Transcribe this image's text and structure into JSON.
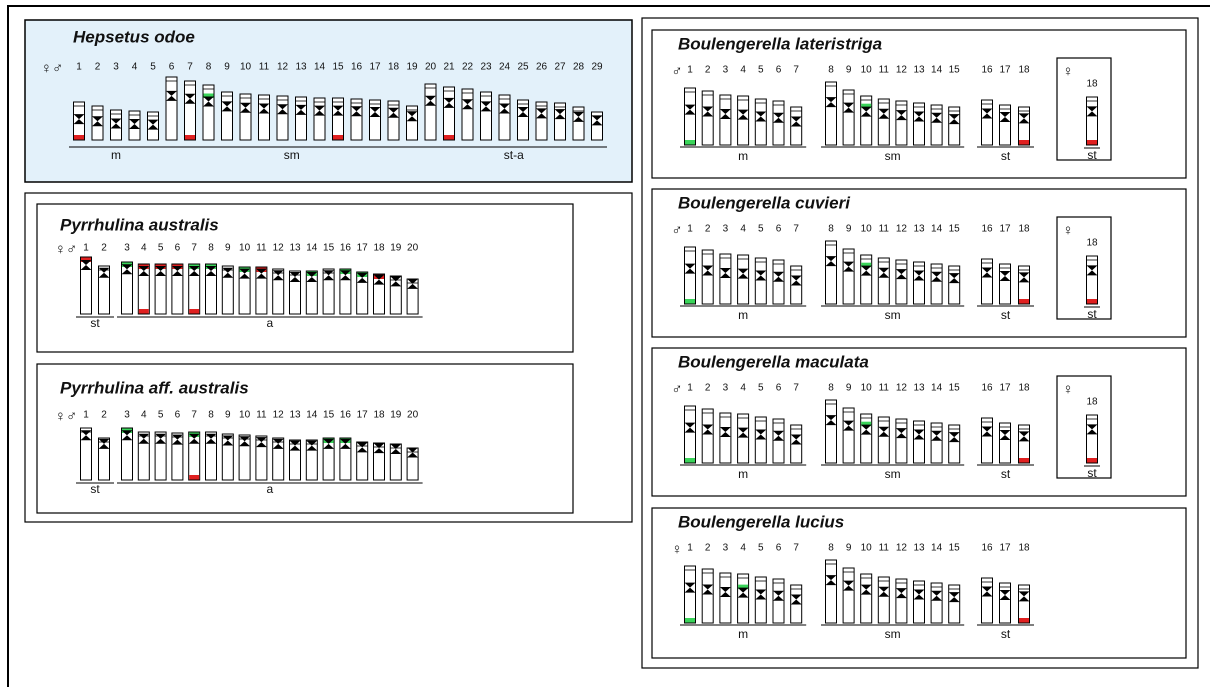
{
  "panels": [
    {
      "title": "Hepsetus odoe",
      "sex": "♀♂",
      "chromosomes": [
        1,
        2,
        3,
        4,
        5,
        6,
        7,
        8,
        9,
        10,
        11,
        12,
        13,
        14,
        15,
        16,
        17,
        18,
        19,
        20,
        21,
        22,
        23,
        24,
        25,
        26,
        27,
        28,
        29
      ],
      "groups": [
        "m",
        "sm",
        "st-a"
      ]
    },
    {
      "title": "Pyrrhulina australis",
      "sex": "♀♂",
      "chromosomes": [
        1,
        2,
        3,
        4,
        5,
        6,
        7,
        8,
        9,
        10,
        11,
        12,
        13,
        14,
        15,
        16,
        17,
        18,
        19,
        20
      ],
      "groups": [
        "st",
        "a"
      ]
    },
    {
      "title": "Pyrrhulina aff. australis",
      "sex": "♀♂",
      "chromosomes": [
        1,
        2,
        3,
        4,
        5,
        6,
        7,
        8,
        9,
        10,
        11,
        12,
        13,
        14,
        15,
        16,
        17,
        18,
        19,
        20
      ],
      "groups": [
        "st",
        "a"
      ]
    },
    {
      "title": "Boulengerella lateristriga",
      "sex": "♂",
      "chromosomes": [
        1,
        2,
        3,
        4,
        5,
        6,
        7,
        8,
        9,
        10,
        11,
        12,
        13,
        14,
        15,
        16,
        17,
        18
      ],
      "groups": [
        "m",
        "sm",
        "st"
      ],
      "inset": {
        "sex": "♀",
        "chromosome": 18,
        "group": "st"
      }
    },
    {
      "title": "Boulengerella cuvieri",
      "sex": "♂",
      "chromosomes": [
        1,
        2,
        3,
        4,
        5,
        6,
        7,
        8,
        9,
        10,
        11,
        12,
        13,
        14,
        15,
        16,
        17,
        18
      ],
      "groups": [
        "m",
        "sm",
        "st"
      ],
      "inset": {
        "sex": "♀",
        "chromosome": 18,
        "group": "st"
      }
    },
    {
      "title": "Boulengerella maculata",
      "sex": "♂",
      "chromosomes": [
        1,
        2,
        3,
        4,
        5,
        6,
        7,
        8,
        9,
        10,
        11,
        12,
        13,
        14,
        15,
        16,
        17,
        18
      ],
      "groups": [
        "m",
        "sm",
        "st"
      ],
      "inset": {
        "sex": "♀",
        "chromosome": 18,
        "group": "st"
      }
    },
    {
      "title": "Boulengerella lucius",
      "sex": "♀",
      "chromosomes": [
        1,
        2,
        3,
        4,
        5,
        6,
        7,
        8,
        9,
        10,
        11,
        12,
        13,
        14,
        15,
        16,
        17,
        18
      ],
      "groups": [
        "m",
        "sm",
        "st"
      ]
    }
  ]
}
